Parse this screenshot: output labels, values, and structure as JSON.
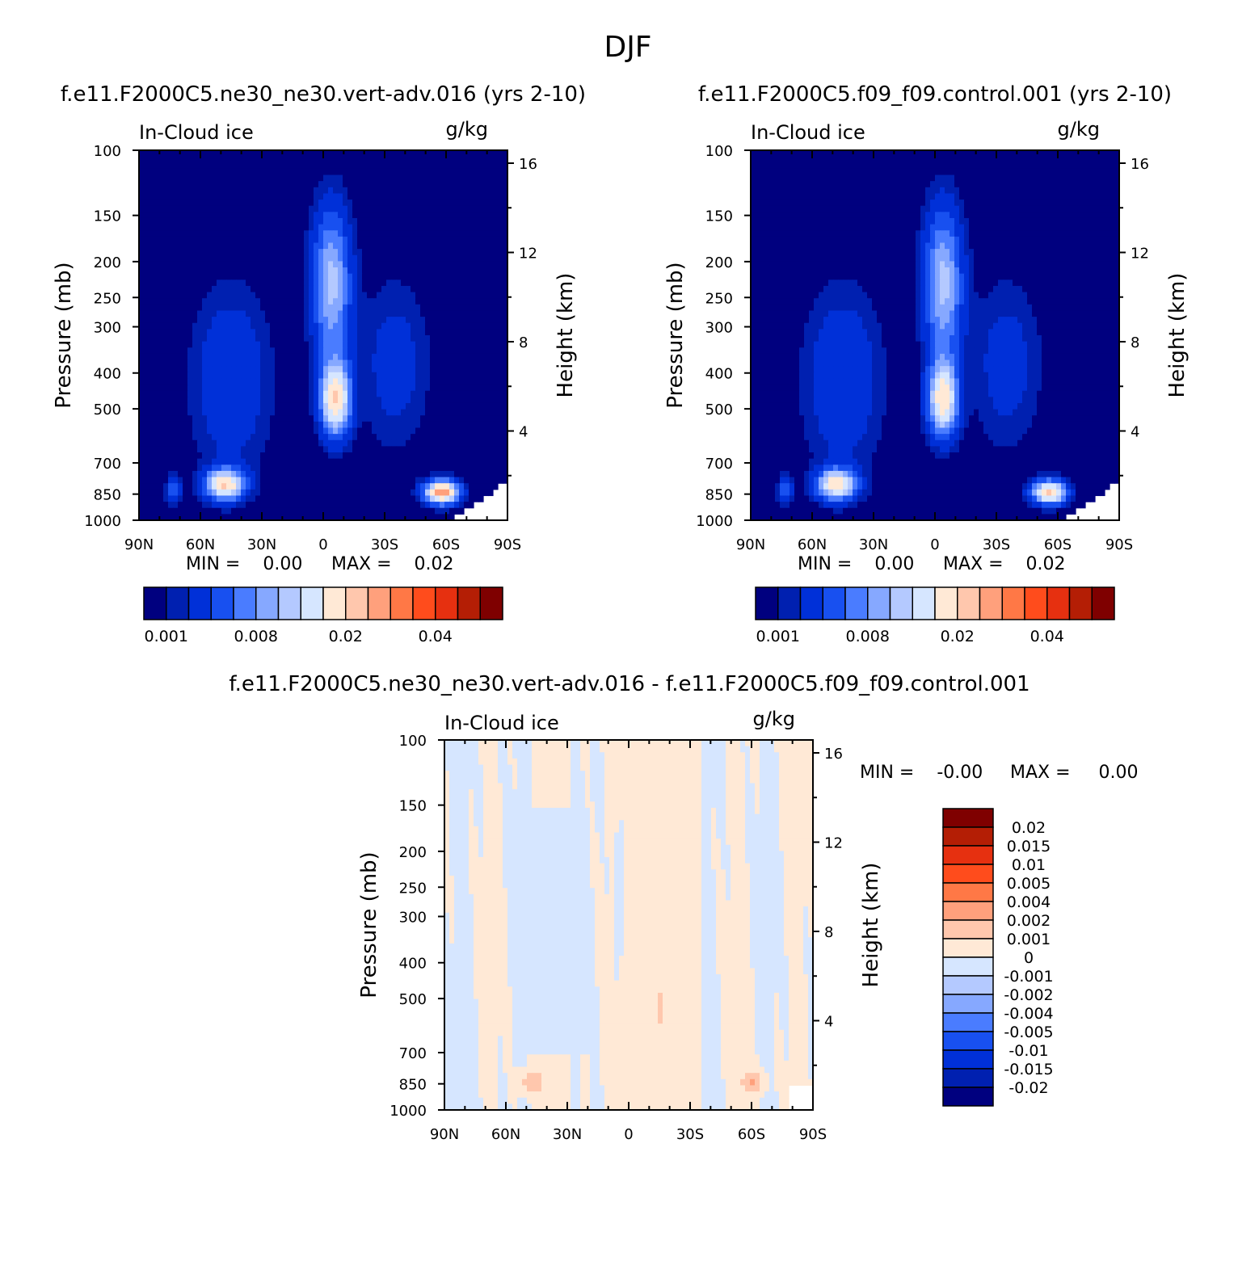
{
  "figure": {
    "title": "DJF"
  },
  "colors": {
    "seq": [
      "#00007f",
      "#0020b0",
      "#0030d8",
      "#1850f0",
      "#4a7cff",
      "#86a8ff",
      "#b4c9ff",
      "#d6e6ff",
      "#ffe9d6",
      "#ffc7ad",
      "#ffa07c",
      "#ff7846",
      "#ff4c1c",
      "#e63010",
      "#b41e05",
      "#7f0000"
    ],
    "div": [
      "#00007f",
      "#0020b0",
      "#0030d8",
      "#1850f0",
      "#4a7cff",
      "#86a8ff",
      "#b4c9ff",
      "#d6e6ff",
      "#ffe9d6",
      "#ffc7ad",
      "#ffa07c",
      "#ff7846",
      "#ff4c1c",
      "#e63010",
      "#b41e05",
      "#7f0000"
    ]
  },
  "chart_data": [
    {
      "type": "heatmap",
      "panel": "panel-a",
      "title": "f.e11.F2000C5.ne30_ne30.vert-adv.016 (yrs 2-10)",
      "variable": "In-Cloud ice",
      "units": "g/kg",
      "xlabel": "",
      "ylabel": "Pressure (mb)",
      "y2label": "Height (km)",
      "x_ticks": [
        "90N",
        "60N",
        "30N",
        "0",
        "30S",
        "60S",
        "90S"
      ],
      "x_tick_values": [
        90,
        60,
        30,
        0,
        -30,
        -60,
        -90
      ],
      "y_ticks": [
        "100",
        "150",
        "200",
        "250",
        "300",
        "400",
        "500",
        "700",
        "850",
        "1000"
      ],
      "y_tick_values": [
        100,
        150,
        200,
        250,
        300,
        400,
        500,
        700,
        850,
        1000
      ],
      "y2_ticks": [
        "16",
        "12",
        "8",
        "4"
      ],
      "min_text": "MIN =    0.00",
      "max_text": "MAX =    0.02",
      "colorbar_labels": [
        "0.001",
        "0.008",
        "0.02",
        "0.04"
      ],
      "features": [
        {
          "name": "tropical-upper",
          "lat": -4,
          "p": 230,
          "amp": 0.011
        },
        {
          "name": "tropical-core",
          "lat": -6,
          "p": 470,
          "amp": 0.018
        },
        {
          "name": "nh-midlat",
          "lat": 48,
          "p": 800,
          "amp": 0.018
        },
        {
          "name": "sh-midlat",
          "lat": -58,
          "p": 840,
          "amp": 0.022
        }
      ]
    },
    {
      "type": "heatmap",
      "panel": "panel-b",
      "title": "f.e11.F2000C5.f09_f09.control.001 (yrs 2-10)",
      "variable": "In-Cloud ice",
      "units": "g/kg",
      "xlabel": "",
      "ylabel": "Pressure (mb)",
      "y2label": "Height (km)",
      "x_ticks": [
        "90N",
        "60N",
        "30N",
        "0",
        "30S",
        "60S",
        "90S"
      ],
      "x_tick_values": [
        90,
        60,
        30,
        0,
        -30,
        -60,
        -90
      ],
      "y_ticks": [
        "100",
        "150",
        "200",
        "250",
        "300",
        "400",
        "500",
        "700",
        "850",
        "1000"
      ],
      "y_tick_values": [
        100,
        150,
        200,
        250,
        300,
        400,
        500,
        700,
        850,
        1000
      ],
      "y2_ticks": [
        "16",
        "12",
        "8",
        "4"
      ],
      "min_text": "MIN =    0.00",
      "max_text": "MAX =    0.02",
      "colorbar_labels": [
        "0.001",
        "0.008",
        "0.02",
        "0.04"
      ],
      "features": [
        {
          "name": "tropical-upper",
          "lat": -4,
          "p": 230,
          "amp": 0.011
        },
        {
          "name": "tropical-core",
          "lat": -4,
          "p": 470,
          "amp": 0.017
        },
        {
          "name": "nh-midlat",
          "lat": 48,
          "p": 800,
          "amp": 0.017
        },
        {
          "name": "sh-midlat",
          "lat": -56,
          "p": 840,
          "amp": 0.019
        }
      ]
    },
    {
      "type": "heatmap",
      "panel": "panel-c",
      "title": "f.e11.F2000C5.ne30_ne30.vert-adv.016 - f.e11.F2000C5.f09_f09.control.001",
      "variable": "In-Cloud ice",
      "units": "g/kg",
      "xlabel": "",
      "ylabel": "Pressure (mb)",
      "y2label": "Height (km)",
      "x_ticks": [
        "90N",
        "60N",
        "30N",
        "0",
        "30S",
        "60S",
        "90S"
      ],
      "x_tick_values": [
        90,
        60,
        30,
        0,
        -30,
        -60,
        -90
      ],
      "y_ticks": [
        "100",
        "150",
        "200",
        "250",
        "300",
        "400",
        "500",
        "700",
        "850",
        "1000"
      ],
      "y_tick_values": [
        100,
        150,
        200,
        250,
        300,
        400,
        500,
        700,
        850,
        1000
      ],
      "y2_ticks": [
        "16",
        "12",
        "8",
        "4"
      ],
      "min_text": "MIN =    -0.00",
      "max_text": "MAX =     0.00",
      "colorbar_labels": [
        "0.02",
        "0.015",
        "0.01",
        "0.005",
        "0.004",
        "0.002",
        "0.001",
        "0",
        "-0.001",
        "-0.002",
        "-0.004",
        "-0.005",
        "-0.01",
        "-0.015",
        "-0.02"
      ],
      "features": [
        {
          "name": "nh-lowlevel-positive",
          "lat": 48,
          "p": 840,
          "amp": 0.002
        },
        {
          "name": "sh-lowlevel-positive",
          "lat": -60,
          "p": 840,
          "amp": 0.002
        },
        {
          "name": "tropical-midlevel-positive",
          "lat": -15,
          "p": 530,
          "amp": 0.0012
        },
        {
          "name": "equatorial-negative",
          "lat": 5,
          "p": 260,
          "amp": -0.0012
        }
      ]
    }
  ]
}
